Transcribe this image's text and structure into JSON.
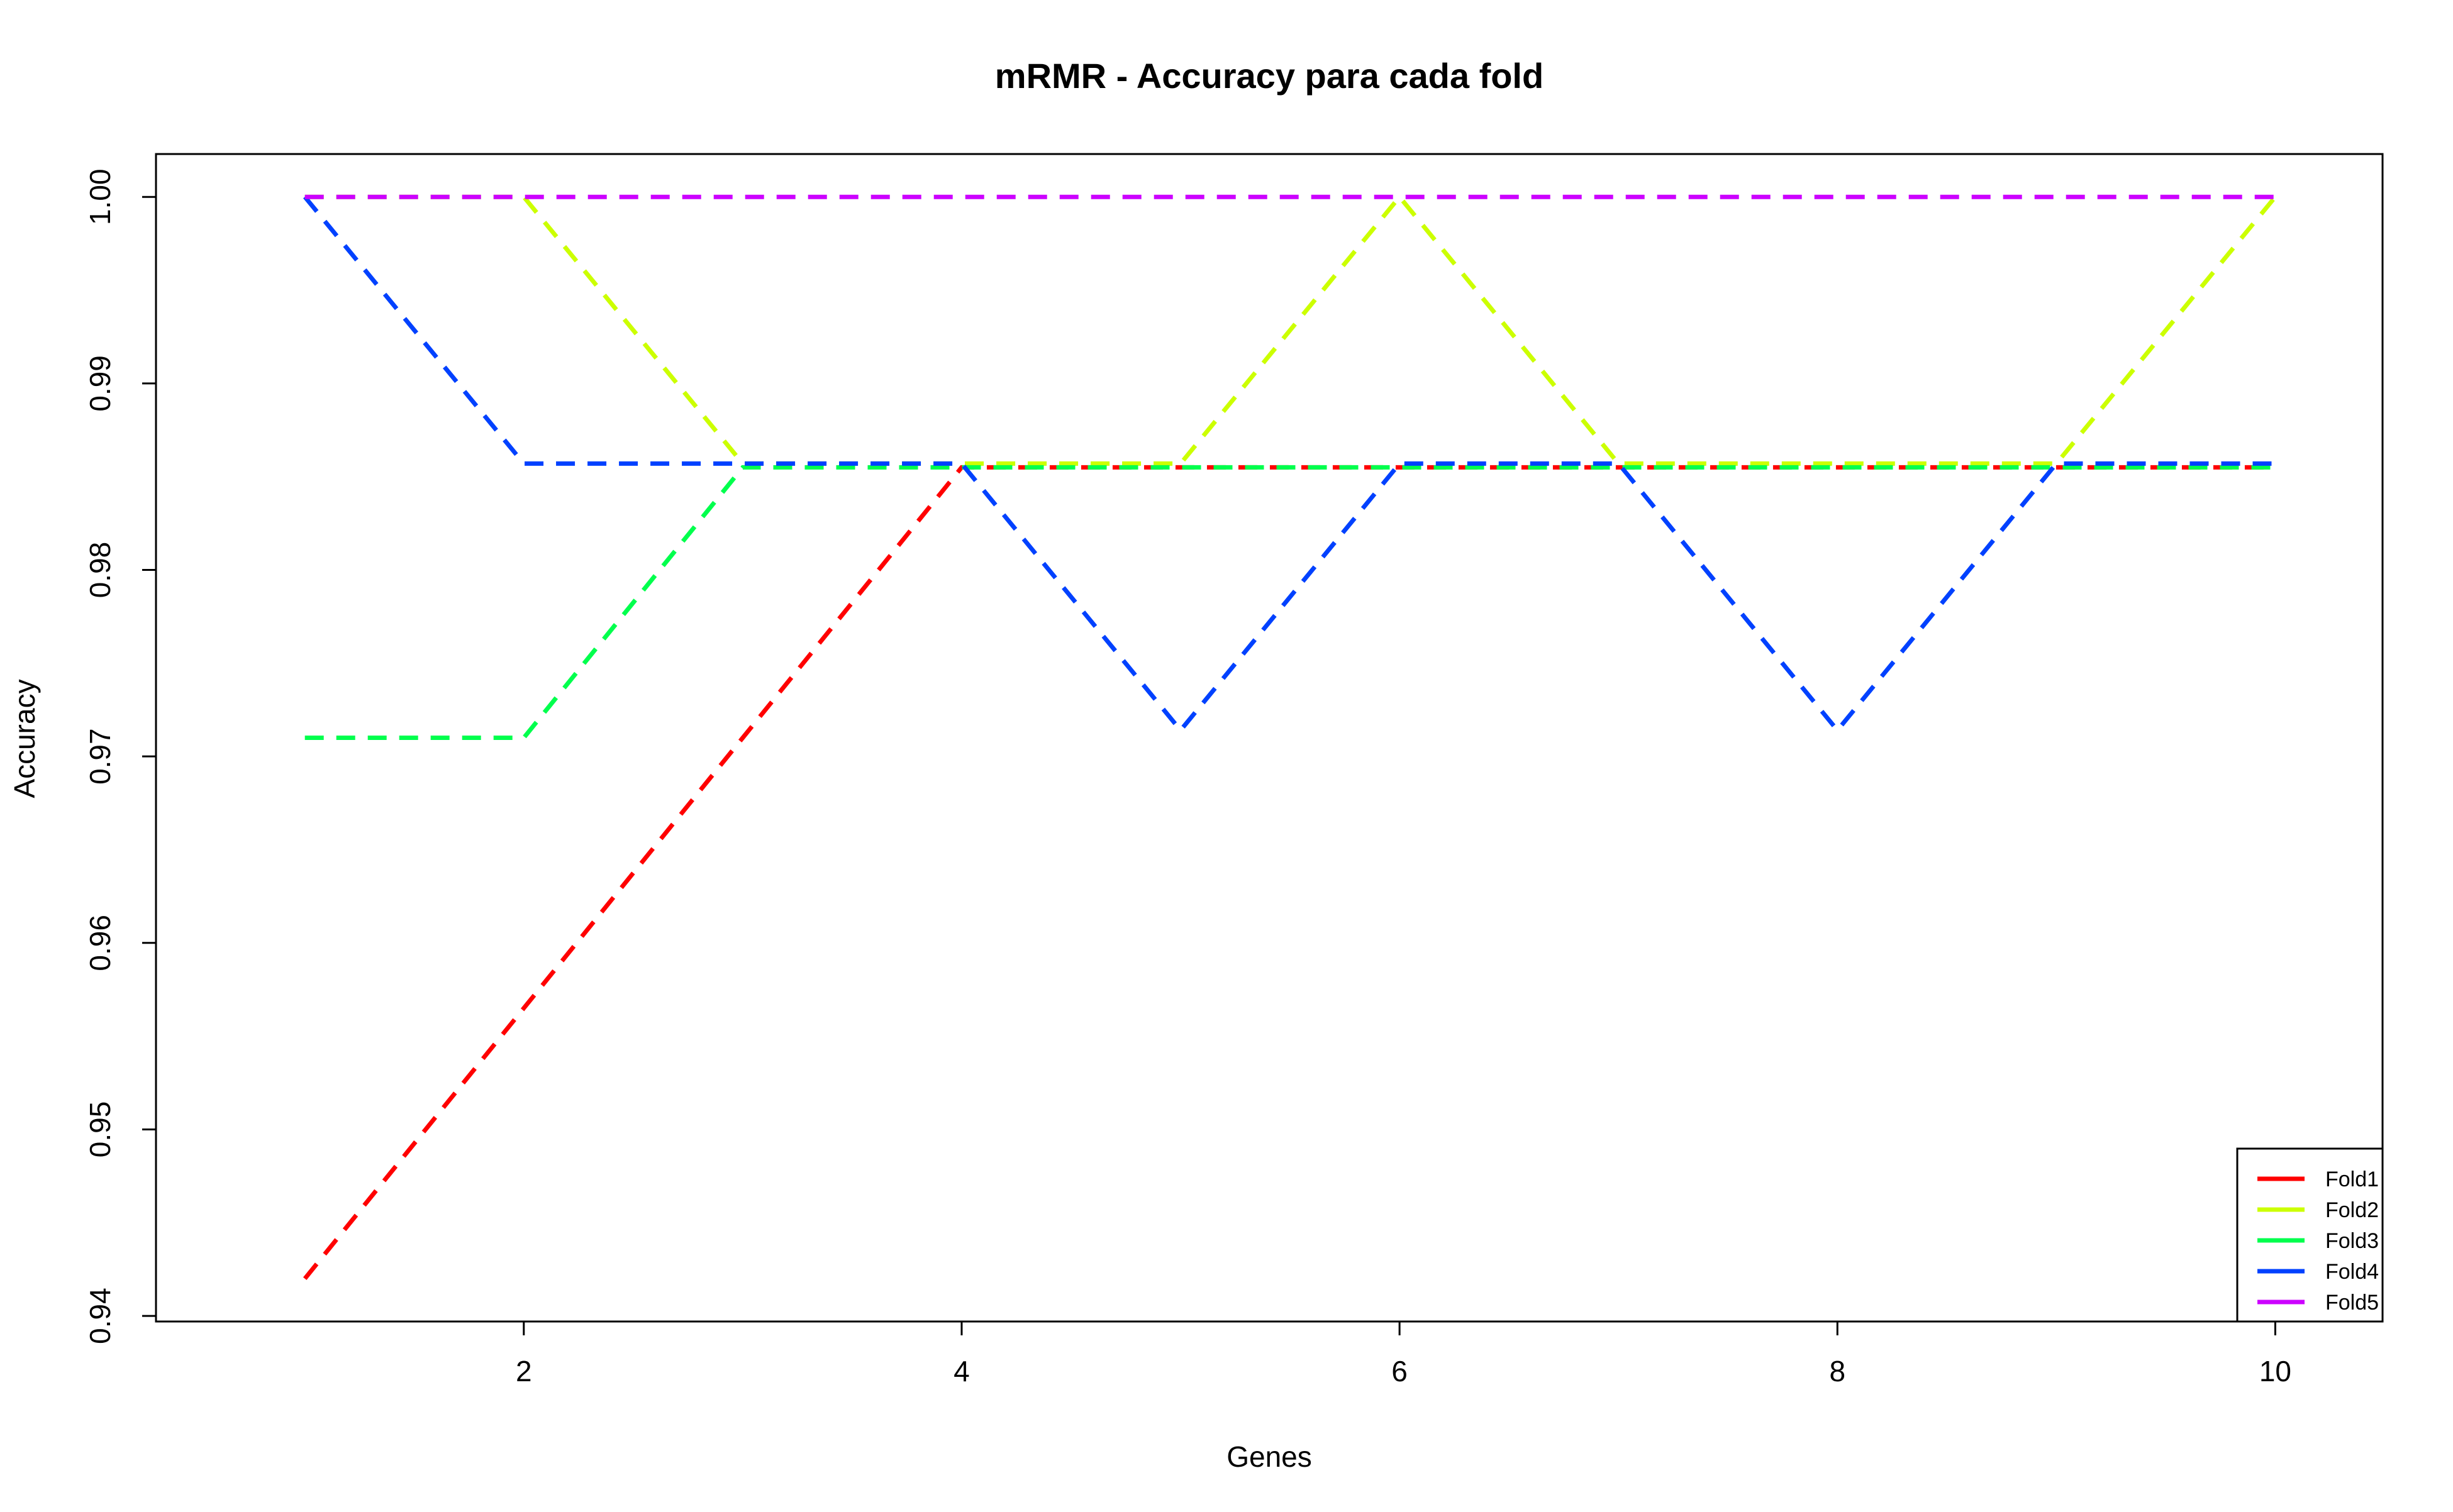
{
  "chart_data": {
    "type": "line",
    "title": "mRMR - Accuracy para cada fold",
    "xlabel": "Genes",
    "ylabel": "Accuracy",
    "xlim": [
      0.32,
      10.49
    ],
    "ylim": [
      0.9397,
      1.0023
    ],
    "xticks": [
      2,
      4,
      6,
      8,
      10
    ],
    "xtick_labels": [
      "2",
      "4",
      "6",
      "8",
      "10"
    ],
    "yticks": [
      0.94,
      0.95,
      0.96,
      0.97,
      0.98,
      0.99,
      1.0
    ],
    "ytick_labels": [
      "0.94",
      "0.95",
      "0.96",
      "0.97",
      "0.98",
      "0.99",
      "1.00"
    ],
    "grid": false,
    "legend_position": "bottom-right",
    "line_style": "dashed",
    "x": [
      1,
      2,
      3,
      4,
      5,
      6,
      7,
      8,
      9,
      10
    ],
    "series": [
      {
        "name": "Fold1",
        "color": "#ff0000",
        "values": [
          0.942,
          0.9565,
          0.971,
          0.9855,
          0.9855,
          0.9855,
          0.9855,
          0.9855,
          0.9855,
          0.9855
        ]
      },
      {
        "name": "Fold2",
        "color": "#ccff00",
        "values": [
          1.0,
          1.0,
          0.9857,
          0.9857,
          0.9857,
          1.0,
          0.9857,
          0.9857,
          0.9857,
          1.0
        ]
      },
      {
        "name": "Fold3",
        "color": "#00ff4d",
        "values": [
          0.971,
          0.971,
          0.9855,
          0.9855,
          0.9855,
          0.9855,
          0.9855,
          0.9855,
          0.9855,
          0.9855
        ]
      },
      {
        "name": "Fold4",
        "color": "#0041ff",
        "values": [
          1.0,
          0.9857,
          0.9857,
          0.9857,
          0.9714,
          0.9857,
          0.9857,
          0.9714,
          0.9857,
          0.9857
        ]
      },
      {
        "name": "Fold5",
        "color": "#cc00ff",
        "values": [
          1.0,
          1.0,
          1.0,
          1.0,
          1.0,
          1.0,
          1.0,
          1.0,
          1.0,
          1.0
        ]
      }
    ]
  }
}
